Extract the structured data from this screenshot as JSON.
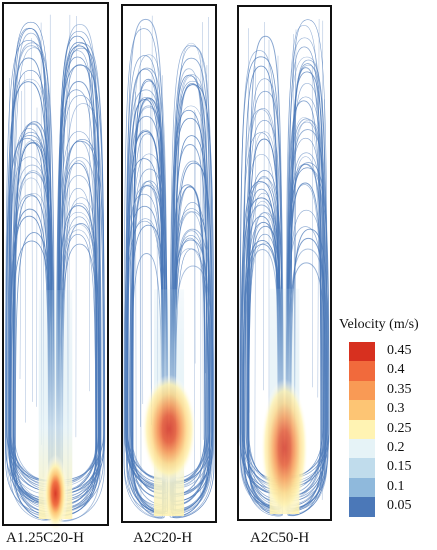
{
  "panels": [
    {
      "label": "A1.25C20-H",
      "hot_intensity": 0.95
    },
    {
      "label": "A2C20-H",
      "hot_intensity": 0.85
    },
    {
      "label": "A2C50-H",
      "hot_intensity": 0.8
    }
  ],
  "legend": {
    "title": "Velocity (m/s)",
    "levels": [
      {
        "value": "0.45",
        "color": "#d7301f"
      },
      {
        "value": "0.4",
        "color": "#f16a3c"
      },
      {
        "value": "0.35",
        "color": "#f99a55"
      },
      {
        "value": "0.3",
        "color": "#fdc574"
      },
      {
        "value": "0.25",
        "color": "#fff3b3"
      },
      {
        "value": "0.2",
        "color": "#e6f3f7"
      },
      {
        "value": "0.15",
        "color": "#c0dcec"
      },
      {
        "value": "0.1",
        "color": "#8fb9dc"
      },
      {
        "value": "0.05",
        "color": "#4b78b8"
      }
    ]
  },
  "streamline_color": "#4a78b8"
}
